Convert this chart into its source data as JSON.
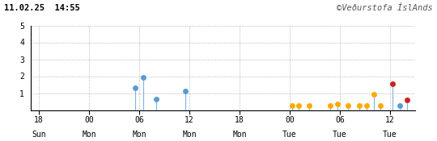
{
  "title_left": "11.02.25  14:55",
  "title_right": "©Veðurstofa ÍslAnds",
  "ylim": [
    0,
    5
  ],
  "yticks": [
    1,
    2,
    3,
    4,
    5
  ],
  "xlabel_ticks": [
    {
      "label": "18\nSun",
      "x": 0
    },
    {
      "label": "00\nMon",
      "x": 6
    },
    {
      "label": "06\nMon",
      "x": 12
    },
    {
      "label": "12\nMon",
      "x": 18
    },
    {
      "label": "18\nMon",
      "x": 24
    },
    {
      "label": "00\nTue",
      "x": 30
    },
    {
      "label": "06\nTue",
      "x": 36
    },
    {
      "label": "12\nTue",
      "x": 42
    }
  ],
  "xlim": [
    -1,
    45
  ],
  "events": [
    {
      "x": 11.5,
      "mag": 1.3,
      "color": "#5b9bd5"
    },
    {
      "x": 12.5,
      "mag": 1.95,
      "color": "#5b9bd5"
    },
    {
      "x": 14.0,
      "mag": 0.65,
      "color": "#5b9bd5"
    },
    {
      "x": 17.5,
      "mag": 1.1,
      "color": "#5b9bd5"
    },
    {
      "x": 30.3,
      "mag": 0.27,
      "color": "#ffaa00"
    },
    {
      "x": 31.1,
      "mag": 0.27,
      "color": "#ffaa00"
    },
    {
      "x": 32.3,
      "mag": 0.27,
      "color": "#ffaa00"
    },
    {
      "x": 34.8,
      "mag": 0.27,
      "color": "#ffaa00"
    },
    {
      "x": 35.7,
      "mag": 0.35,
      "color": "#ffaa00"
    },
    {
      "x": 37.0,
      "mag": 0.27,
      "color": "#ffaa00"
    },
    {
      "x": 38.3,
      "mag": 0.27,
      "color": "#ffaa00"
    },
    {
      "x": 39.2,
      "mag": 0.27,
      "color": "#ffaa00"
    },
    {
      "x": 40.1,
      "mag": 0.95,
      "color": "#ffaa00"
    },
    {
      "x": 40.8,
      "mag": 0.27,
      "color": "#ffaa00"
    },
    {
      "x": 42.3,
      "mag": 1.55,
      "color": "#cc2222"
    },
    {
      "x": 43.2,
      "mag": 0.27,
      "color": "#5b9bd5"
    },
    {
      "x": 44.0,
      "mag": 0.6,
      "color": "#cc2222"
    }
  ],
  "background_color": "#ffffff",
  "grid_color": "#999999",
  "marker_size": 5,
  "stem_color": "#7fb3e8"
}
